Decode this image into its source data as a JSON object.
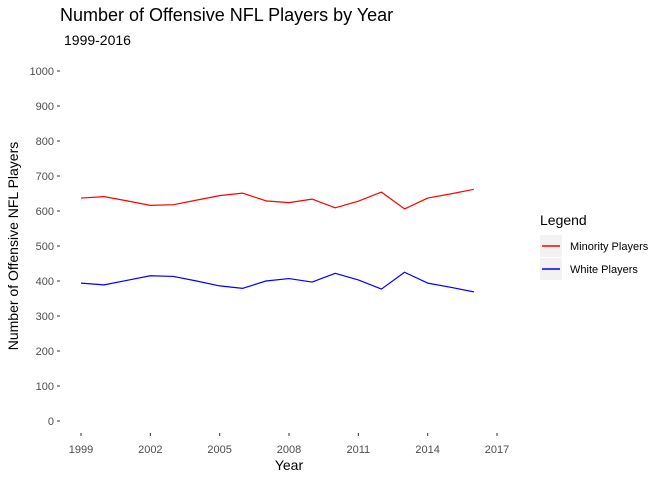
{
  "chart_data": {
    "type": "line",
    "title": "Number of Offensive NFL Players by Year",
    "subtitle": "1999-2016",
    "xlabel": "Year",
    "ylabel": "Number of Offensive NFL Players",
    "x": [
      1999,
      2000,
      2001,
      2002,
      2003,
      2004,
      2005,
      2006,
      2007,
      2008,
      2009,
      2010,
      2011,
      2012,
      2013,
      2014,
      2015,
      2016
    ],
    "xticks": [
      1999,
      2002,
      2005,
      2008,
      2011,
      2014,
      2017
    ],
    "xlim": [
      1999,
      2017
    ],
    "yticks": [
      0,
      100,
      200,
      300,
      400,
      500,
      600,
      700,
      800,
      900,
      1000
    ],
    "ylim": [
      0,
      1000
    ],
    "grid": false,
    "legend": {
      "title": "Legend",
      "position": "right"
    },
    "series": [
      {
        "name": "Minority Players",
        "color": "#ff0000",
        "values": [
          637,
          641,
          629,
          616,
          618,
          631,
          644,
          651,
          629,
          624,
          634,
          609,
          628,
          654,
          606,
          637,
          649,
          662
        ]
      },
      {
        "name": "White Players",
        "color": "#0000ff",
        "values": [
          394,
          389,
          402,
          415,
          413,
          400,
          386,
          379,
          400,
          407,
          397,
          422,
          403,
          377,
          425,
          394,
          382,
          369
        ]
      }
    ]
  }
}
